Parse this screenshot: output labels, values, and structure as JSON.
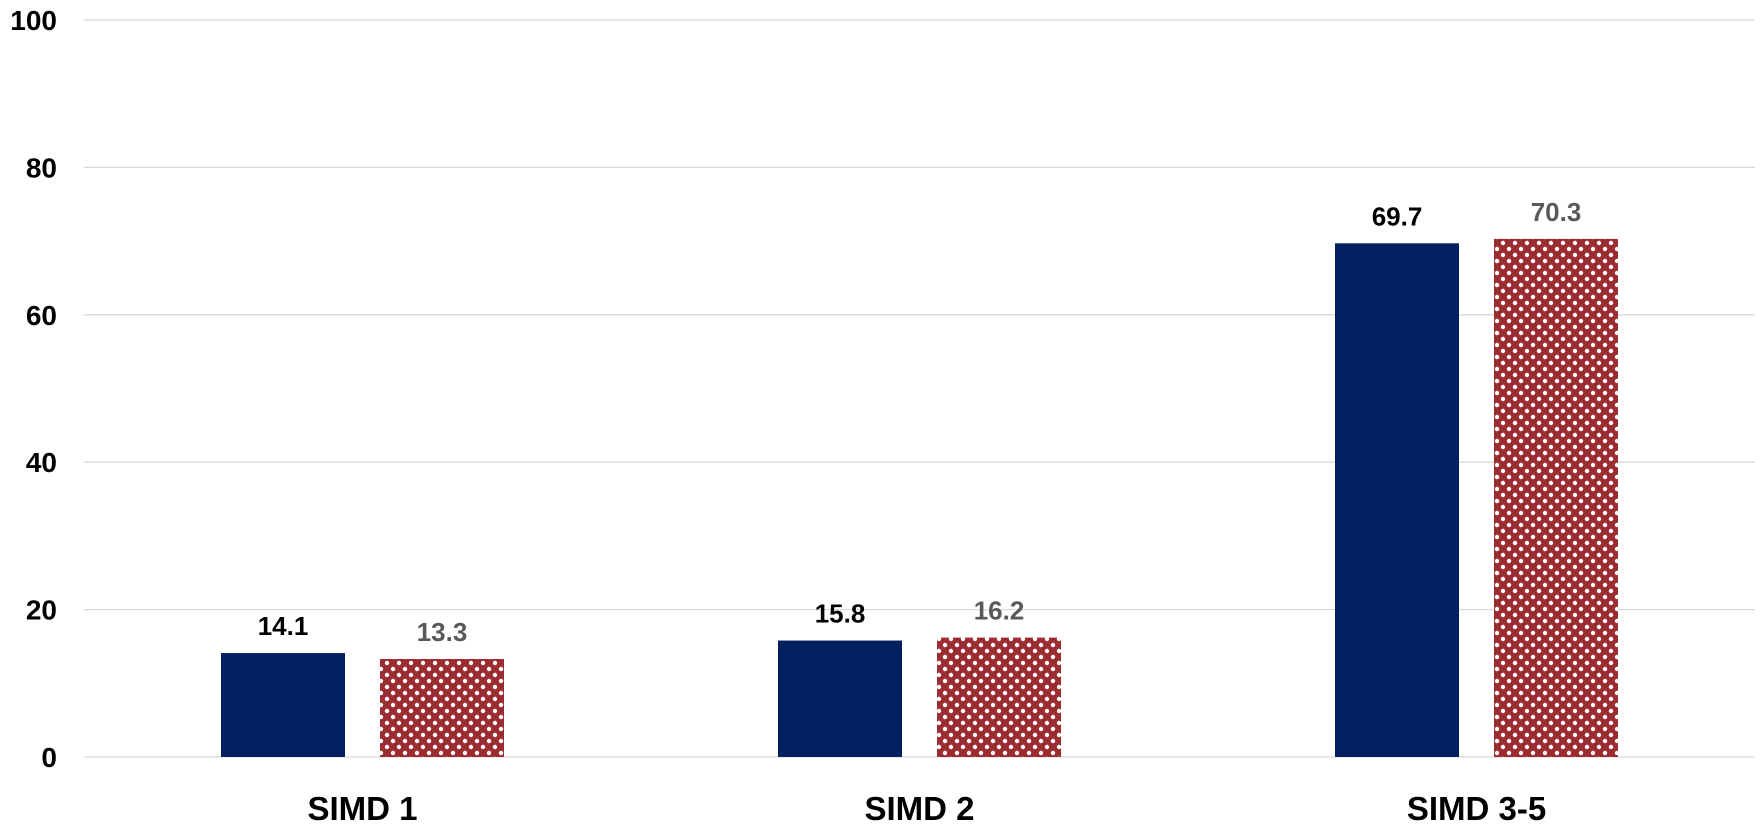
{
  "chart_data": {
    "type": "bar",
    "categories": [
      "SIMD 1",
      "SIMD 2",
      "SIMD 3-5"
    ],
    "series": [
      {
        "values": [
          14.1,
          15.8,
          69.7
        ],
        "color": "#002060",
        "fill": "solid",
        "label_color": "#000000"
      },
      {
        "values": [
          13.3,
          16.2,
          70.3
        ],
        "color": "#9b2d30",
        "fill": "checker-pattern",
        "label_color": "#595959"
      }
    ],
    "ylim": [
      0,
      100
    ],
    "yticks": [
      0,
      20,
      40,
      60,
      80,
      100
    ],
    "grid": true,
    "legend": "none",
    "title": "",
    "xlabel": "",
    "ylabel": ""
  }
}
